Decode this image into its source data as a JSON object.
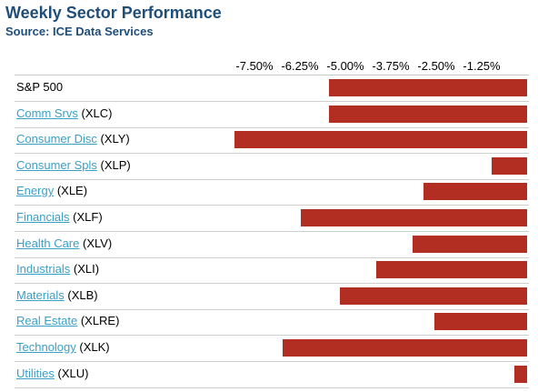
{
  "chart_data": {
    "type": "bar",
    "orientation": "horizontal",
    "title": "Weekly Sector Performance",
    "subtitle": "Source: ICE Data Services",
    "xlim": [
      -8.25,
      0
    ],
    "tick_labels": [
      "-7.50%",
      "-6.25%",
      "-5.00%",
      "-3.75%",
      "-2.50%",
      "-1.25%"
    ],
    "tick_values": [
      -7.5,
      -6.25,
      -5.0,
      -3.75,
      -2.5,
      -1.25
    ],
    "bar_color": "#b22e22",
    "grid": false,
    "legend": false,
    "rows": [
      {
        "name": "S&P 500",
        "ticker": "",
        "linked": false,
        "value": -5.45
      },
      {
        "name": "Comm Srvs",
        "ticker": "(XLC)",
        "linked": true,
        "value": -5.45
      },
      {
        "name": "Consumer Disc",
        "ticker": "(XLY)",
        "linked": true,
        "value": -8.05
      },
      {
        "name": "Consumer Spls",
        "ticker": "(XLP)",
        "linked": true,
        "value": -0.97
      },
      {
        "name": "Energy",
        "ticker": "(XLE)",
        "linked": true,
        "value": -2.85
      },
      {
        "name": "Financials",
        "ticker": "(XLF)",
        "linked": true,
        "value": -6.22
      },
      {
        "name": "Health Care",
        "ticker": "(XLV)",
        "linked": true,
        "value": -3.15
      },
      {
        "name": "Industrials",
        "ticker": "(XLI)",
        "linked": true,
        "value": -4.15
      },
      {
        "name": "Materials",
        "ticker": "(XLB)",
        "linked": true,
        "value": -5.15
      },
      {
        "name": "Real Estate",
        "ticker": "(XLRE)",
        "linked": true,
        "value": -2.55
      },
      {
        "name": "Technology",
        "ticker": "(XLK)",
        "linked": true,
        "value": -6.72
      },
      {
        "name": "Utilities",
        "ticker": "(XLU)",
        "linked": true,
        "value": -0.35
      }
    ]
  }
}
